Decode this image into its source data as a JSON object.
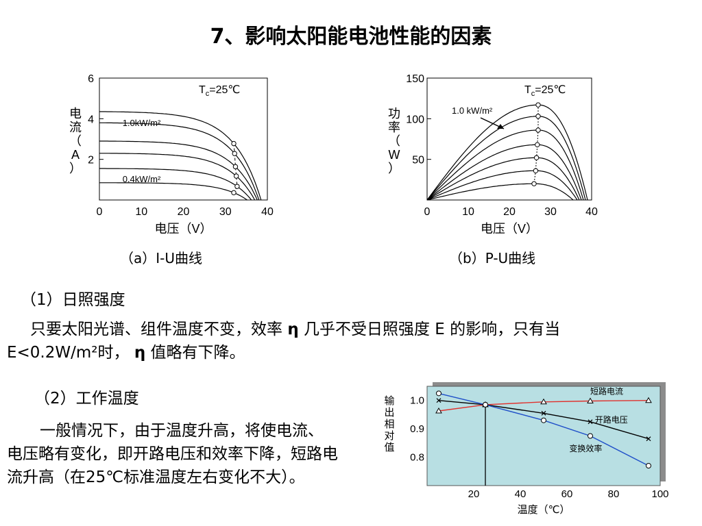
{
  "title": "7、影响太阳能电池性能的因素",
  "chart_data": [
    {
      "type": "line",
      "subtitle": "T_c=25℃",
      "caption": "（a）I-U曲线",
      "xlabel": "电压（V）",
      "ylabel": "电流（A）",
      "xlim": [
        0,
        40
      ],
      "ylim": [
        0,
        6
      ],
      "xticks": [
        "0",
        "10",
        "20",
        "30",
        "40"
      ],
      "yticks": [
        "2",
        "4",
        "6"
      ],
      "annotations": [
        "1.0kW/m²",
        "0.4kW/m²"
      ],
      "series": [
        {
          "isc": 4.35,
          "voc": 38.5,
          "mpp_v": 32.0
        },
        {
          "isc": 3.8,
          "voc": 38.0,
          "mpp_v": 32.2
        },
        {
          "isc": 2.9,
          "voc": 37.6,
          "mpp_v": 32.4
        },
        {
          "isc": 2.3,
          "voc": 37.0,
          "mpp_v": 32.6
        },
        {
          "isc": 1.55,
          "voc": 36.2,
          "mpp_v": 32.8
        },
        {
          "isc": 0.85,
          "voc": 35.2,
          "mpp_v": 32.0
        }
      ]
    },
    {
      "type": "line",
      "subtitle": "T_c=25℃",
      "caption": "（b）P-U曲线",
      "xlabel": "电压（V）",
      "ylabel": "功率（W）",
      "xlim": [
        0,
        40
      ],
      "ylim": [
        0,
        150
      ],
      "xticks": [
        "0",
        "10",
        "20",
        "30",
        "40"
      ],
      "yticks": [
        "50",
        "100",
        "150"
      ],
      "annotations": [
        "1.0 kW/m²"
      ],
      "series": [
        {
          "vmp": 27.0,
          "pmax": 117,
          "voc": 39.0
        },
        {
          "vmp": 27.0,
          "pmax": 103,
          "voc": 38.5
        },
        {
          "vmp": 27.0,
          "pmax": 86,
          "voc": 38.0
        },
        {
          "vmp": 26.8,
          "pmax": 68,
          "voc": 37.5
        },
        {
          "vmp": 26.6,
          "pmax": 52,
          "voc": 37.0
        },
        {
          "vmp": 26.4,
          "pmax": 36,
          "voc": 36.5
        },
        {
          "vmp": 26.0,
          "pmax": 20,
          "voc": 35.5
        }
      ]
    },
    {
      "type": "line",
      "xlabel": "温度（℃）",
      "ylabel": "输出相对值",
      "xlim": [
        0,
        100
      ],
      "ylim": [
        0.7,
        1.05
      ],
      "xticks": [
        "20",
        "40",
        "60",
        "80",
        "100"
      ],
      "yticks": [
        "0.8",
        "0.9",
        "1.0"
      ],
      "reference_x": 25,
      "colors": {
        "background": "#b8dfe3",
        "shadow": "#8c8c8c",
        "短路电流": "#e0312d",
        "开路电压": "#000000",
        "变换效率": "#1f4fc9"
      },
      "series": [
        {
          "name": "短路电流",
          "x": [
            5,
            25,
            50,
            70,
            95
          ],
          "y": [
            0.963,
            0.985,
            0.995,
            0.998,
            1.0
          ]
        },
        {
          "name": "开路电压",
          "x": [
            5,
            25,
            50,
            70,
            95
          ],
          "y": [
            1.0,
            0.985,
            0.955,
            0.925,
            0.865
          ]
        },
        {
          "name": "变换效率",
          "x": [
            5,
            25,
            50,
            70,
            95
          ],
          "y": [
            1.025,
            0.985,
            0.93,
            0.875,
            0.77
          ]
        }
      ]
    }
  ],
  "sections": {
    "s1_heading": "（1）日照强度",
    "s1_p1": "只要太阳光谱、组件温度不变，效率",
    "s1_eta1": "η",
    "s1_p2": "几乎不受日照强度 E 的影响，只有当",
    "s1_p3": "E<0.2W/m²时，",
    "s1_eta2": "η",
    "s1_p4": "值略有下降。",
    "s2_heading": "（2）工作温度",
    "s2_body": "一般情况下，由于温度升高，将使电流、电压略有变化，即开路电压和效率下降，短路电流升高（在25℃标准温度左右变化不大）。"
  }
}
